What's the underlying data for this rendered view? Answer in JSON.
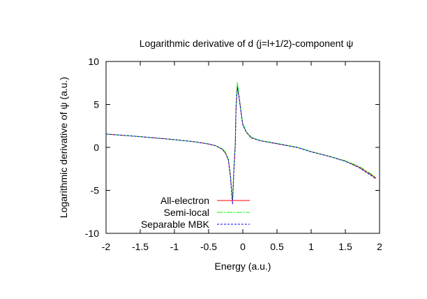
{
  "chart_data": {
    "type": "line",
    "title": "Logarithmic derivative of d (j=l+1/2)-component ψ",
    "xlabel": "Energy (a.u.)",
    "ylabel": "Logarithmic derivative of ψ (a.u.)",
    "xlim": [
      -2,
      2
    ],
    "ylim": [
      -10,
      10
    ],
    "xticks": [
      "-2",
      "-1.5",
      "-1",
      "-0.5",
      "0",
      "0.5",
      "1",
      "1.5",
      "2"
    ],
    "xtick_values": [
      -2,
      -1.5,
      -1,
      -0.5,
      0,
      0.5,
      1,
      1.5,
      2
    ],
    "yticks": [
      "10",
      "5",
      "0",
      "-5",
      "-10"
    ],
    "ytick_values": [
      10,
      5,
      0,
      -5,
      -10
    ],
    "grid": false,
    "legend_position": "bottom-left",
    "series": [
      {
        "name": "All-electron",
        "color": "#ff0000",
        "dash": "solid",
        "x": [
          -2,
          -1.5,
          -1,
          -0.7,
          -0.5,
          -0.4,
          -0.3,
          -0.25,
          -0.21,
          -0.18,
          -0.16,
          -0.15,
          -0.13,
          -0.11,
          -0.1,
          -0.08,
          -0.06,
          -0.04,
          -0.02,
          0,
          0.05,
          0.12,
          0.25,
          0.53,
          0.8,
          1,
          1.25,
          1.5,
          1.7,
          1.9,
          1.95
        ],
        "y": [
          1.55,
          1.25,
          0.9,
          0.65,
          0.4,
          0.2,
          -0.2,
          -0.7,
          -1.5,
          -3.4,
          -5.5,
          -6.2,
          -2.4,
          0.3,
          4.5,
          7.3,
          6.2,
          5.0,
          3.8,
          2.7,
          1.8,
          1.15,
          0.8,
          0.4,
          0.0,
          -0.5,
          -1.0,
          -1.6,
          -2.3,
          -3.3,
          -3.6
        ]
      },
      {
        "name": "Semi-local",
        "color": "#00ff00",
        "dash": "dashdot",
        "x": [
          -2,
          -1.5,
          -1,
          -0.7,
          -0.5,
          -0.4,
          -0.3,
          -0.25,
          -0.21,
          -0.18,
          -0.16,
          -0.15,
          -0.13,
          -0.11,
          -0.1,
          -0.08,
          -0.06,
          -0.04,
          -0.02,
          0,
          0.05,
          0.12,
          0.25,
          0.53,
          0.8,
          1,
          1.25,
          1.5,
          1.7,
          1.9,
          1.95
        ],
        "y": [
          1.55,
          1.25,
          0.9,
          0.65,
          0.4,
          0.2,
          -0.15,
          -0.6,
          -1.4,
          -3.2,
          -5.3,
          -6.1,
          -2.2,
          0.5,
          4.8,
          7.6,
          6.4,
          5.1,
          3.9,
          2.8,
          1.85,
          1.2,
          0.82,
          0.42,
          0.02,
          -0.48,
          -0.98,
          -1.55,
          -2.2,
          -3.2,
          -3.5
        ]
      },
      {
        "name": "Separable MBK",
        "color": "#0000ff",
        "dash": "dashed",
        "x": [
          -2,
          -1.5,
          -1,
          -0.7,
          -0.5,
          -0.4,
          -0.3,
          -0.25,
          -0.21,
          -0.18,
          -0.16,
          -0.15,
          -0.13,
          -0.11,
          -0.1,
          -0.08,
          -0.06,
          -0.04,
          -0.02,
          0,
          0.05,
          0.12,
          0.25,
          0.53,
          0.8,
          1,
          1.25,
          1.5,
          1.7,
          1.9,
          1.95
        ],
        "y": [
          1.55,
          1.25,
          0.9,
          0.65,
          0.4,
          0.2,
          -0.2,
          -0.7,
          -1.5,
          -3.5,
          -5.7,
          -6.6,
          -2.6,
          0.2,
          4.3,
          7.0,
          6.0,
          4.9,
          3.7,
          2.6,
          1.78,
          1.12,
          0.78,
          0.38,
          -0.02,
          -0.52,
          -1.02,
          -1.62,
          -2.35,
          -3.4,
          -3.7
        ]
      }
    ]
  }
}
